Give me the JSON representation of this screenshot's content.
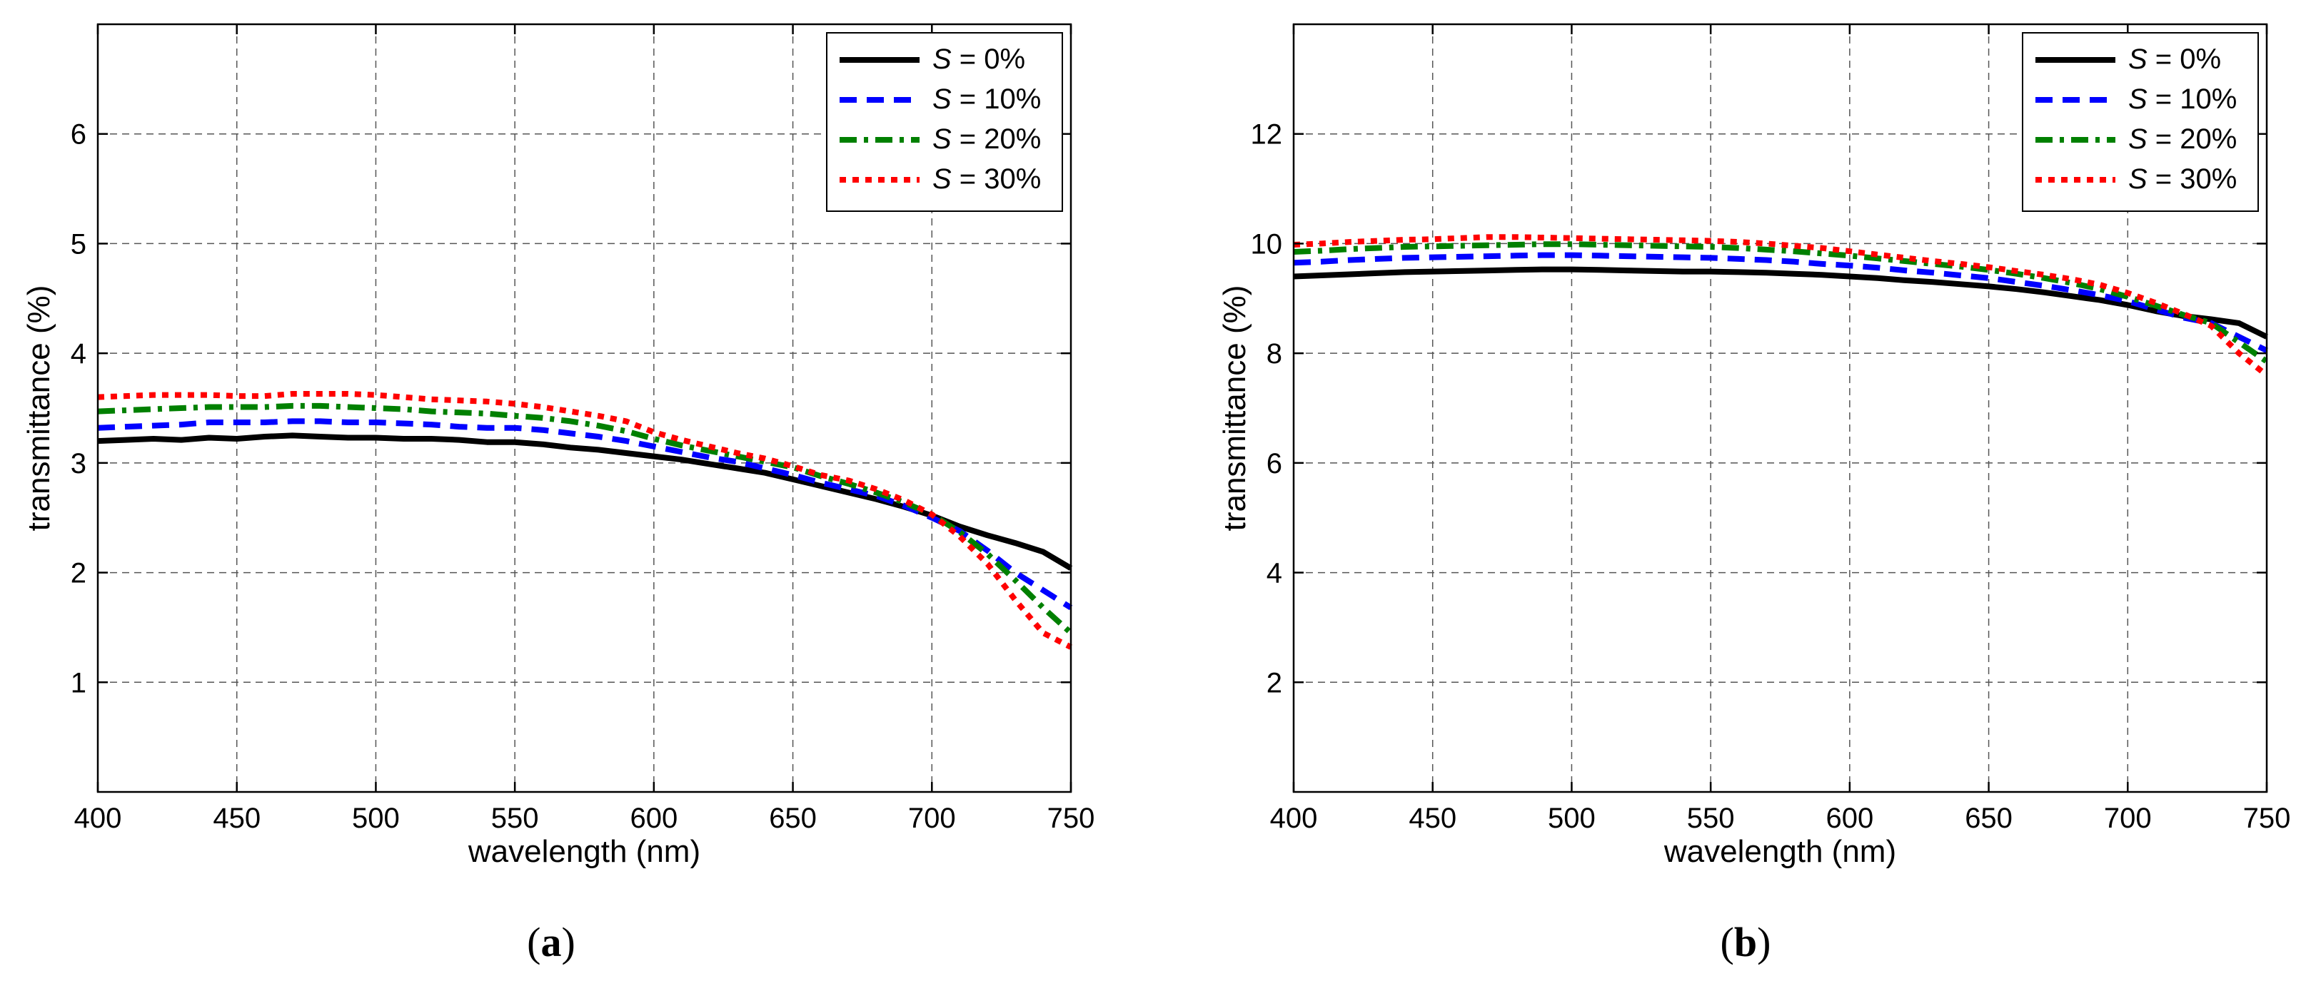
{
  "chart_data": [
    {
      "type": "line",
      "panel_label": "a",
      "xlabel": "wavelength (nm)",
      "ylabel": "transmittance (%)",
      "xlim": [
        400,
        750
      ],
      "ylim": [
        0,
        7
      ],
      "xticks": [
        400,
        450,
        500,
        550,
        600,
        650,
        700,
        750
      ],
      "yticks": [
        1,
        2,
        3,
        4,
        5,
        6
      ],
      "grid": true,
      "legend_position": "top-right",
      "x": [
        400,
        410,
        420,
        430,
        440,
        450,
        460,
        470,
        480,
        490,
        500,
        510,
        520,
        530,
        540,
        550,
        560,
        570,
        580,
        590,
        600,
        610,
        620,
        630,
        640,
        650,
        660,
        670,
        680,
        690,
        700,
        710,
        720,
        730,
        740,
        750
      ],
      "series": [
        {
          "name": "S = 0%",
          "var": "S",
          "rest": " = 0%",
          "color": "#000000",
          "dash": "solid",
          "values": [
            3.2,
            3.21,
            3.22,
            3.21,
            3.23,
            3.22,
            3.24,
            3.25,
            3.24,
            3.23,
            3.23,
            3.22,
            3.22,
            3.21,
            3.19,
            3.19,
            3.17,
            3.14,
            3.12,
            3.09,
            3.06,
            3.03,
            2.99,
            2.95,
            2.91,
            2.85,
            2.79,
            2.73,
            2.67,
            2.6,
            2.52,
            2.42,
            2.34,
            2.27,
            2.19,
            2.04
          ]
        },
        {
          "name": "S = 10%",
          "var": "S",
          "rest": " = 10%",
          "color": "#0000ff",
          "dash": "dash",
          "values": [
            3.32,
            3.33,
            3.34,
            3.35,
            3.37,
            3.37,
            3.37,
            3.38,
            3.38,
            3.37,
            3.37,
            3.36,
            3.35,
            3.33,
            3.32,
            3.32,
            3.3,
            3.27,
            3.24,
            3.2,
            3.15,
            3.1,
            3.05,
            3.01,
            2.95,
            2.89,
            2.82,
            2.76,
            2.7,
            2.61,
            2.5,
            2.38,
            2.2,
            2.0,
            1.84,
            1.68
          ]
        },
        {
          "name": "S = 20%",
          "var": "S",
          "rest": " = 20%",
          "color": "#008000",
          "dash": "dashdot",
          "values": [
            3.47,
            3.48,
            3.49,
            3.5,
            3.51,
            3.51,
            3.51,
            3.52,
            3.52,
            3.51,
            3.5,
            3.49,
            3.47,
            3.46,
            3.45,
            3.43,
            3.41,
            3.38,
            3.34,
            3.29,
            3.22,
            3.16,
            3.11,
            3.06,
            3.01,
            2.96,
            2.88,
            2.81,
            2.73,
            2.64,
            2.53,
            2.37,
            2.17,
            1.93,
            1.68,
            1.45
          ]
        },
        {
          "name": "S = 30%",
          "var": "S",
          "rest": " = 30%",
          "color": "#ff0000",
          "dash": "dot",
          "values": [
            3.6,
            3.61,
            3.62,
            3.62,
            3.62,
            3.61,
            3.61,
            3.63,
            3.63,
            3.63,
            3.62,
            3.6,
            3.58,
            3.57,
            3.56,
            3.54,
            3.51,
            3.47,
            3.43,
            3.38,
            3.28,
            3.21,
            3.15,
            3.09,
            3.04,
            2.97,
            2.89,
            2.84,
            2.76,
            2.66,
            2.53,
            2.33,
            2.08,
            1.75,
            1.45,
            1.32
          ]
        }
      ]
    },
    {
      "type": "line",
      "panel_label": "b",
      "xlabel": "wavelength (nm)",
      "ylabel": "transmittance (%)",
      "xlim": [
        400,
        750
      ],
      "ylim": [
        0,
        14
      ],
      "xticks": [
        400,
        450,
        500,
        550,
        600,
        650,
        700,
        750
      ],
      "yticks": [
        2,
        4,
        6,
        8,
        10,
        12
      ],
      "grid": true,
      "legend_position": "top-right",
      "x": [
        400,
        410,
        420,
        430,
        440,
        450,
        460,
        470,
        480,
        490,
        500,
        510,
        520,
        530,
        540,
        550,
        560,
        570,
        580,
        590,
        600,
        610,
        620,
        630,
        640,
        650,
        660,
        670,
        680,
        690,
        700,
        710,
        720,
        730,
        740,
        750
      ],
      "series": [
        {
          "name": "S = 0%",
          "var": "S",
          "rest": " = 0%",
          "color": "#000000",
          "dash": "solid",
          "values": [
            9.4,
            9.42,
            9.44,
            9.46,
            9.48,
            9.49,
            9.5,
            9.51,
            9.52,
            9.53,
            9.53,
            9.52,
            9.51,
            9.5,
            9.49,
            9.49,
            9.48,
            9.47,
            9.45,
            9.43,
            9.4,
            9.37,
            9.33,
            9.3,
            9.26,
            9.22,
            9.17,
            9.11,
            9.04,
            8.97,
            8.88,
            8.77,
            8.68,
            8.62,
            8.55,
            8.3
          ]
        },
        {
          "name": "S = 10%",
          "var": "S",
          "rest": " = 10%",
          "color": "#0000ff",
          "dash": "dash",
          "values": [
            9.65,
            9.67,
            9.7,
            9.72,
            9.74,
            9.75,
            9.76,
            9.77,
            9.78,
            9.79,
            9.79,
            9.78,
            9.77,
            9.76,
            9.75,
            9.74,
            9.72,
            9.7,
            9.67,
            9.63,
            9.6,
            9.56,
            9.51,
            9.47,
            9.42,
            9.37,
            9.3,
            9.23,
            9.15,
            9.06,
            8.95,
            8.8,
            8.65,
            8.55,
            8.3,
            8.05
          ]
        },
        {
          "name": "S = 20%",
          "var": "S",
          "rest": " = 20%",
          "color": "#008000",
          "dash": "dashdot",
          "values": [
            9.85,
            9.87,
            9.9,
            9.92,
            9.94,
            9.95,
            9.96,
            9.97,
            9.98,
            9.99,
            9.99,
            9.98,
            9.97,
            9.96,
            9.95,
            9.94,
            9.92,
            9.89,
            9.86,
            9.82,
            9.78,
            9.73,
            9.68,
            9.63,
            9.58,
            9.52,
            9.45,
            9.37,
            9.28,
            9.17,
            9.03,
            8.87,
            8.7,
            8.55,
            8.2,
            7.85
          ]
        },
        {
          "name": "S = 30%",
          "var": "S",
          "rest": " = 30%",
          "color": "#ff0000",
          "dash": "dot",
          "values": [
            9.98,
            10.0,
            10.03,
            10.05,
            10.07,
            10.08,
            10.1,
            10.12,
            10.12,
            10.11,
            10.1,
            10.09,
            10.08,
            10.07,
            10.06,
            10.05,
            10.03,
            10.0,
            9.96,
            9.92,
            9.86,
            9.8,
            9.74,
            9.68,
            9.63,
            9.57,
            9.5,
            9.43,
            9.35,
            9.25,
            9.1,
            8.92,
            8.72,
            8.5,
            8.0,
            7.6
          ]
        }
      ]
    }
  ]
}
